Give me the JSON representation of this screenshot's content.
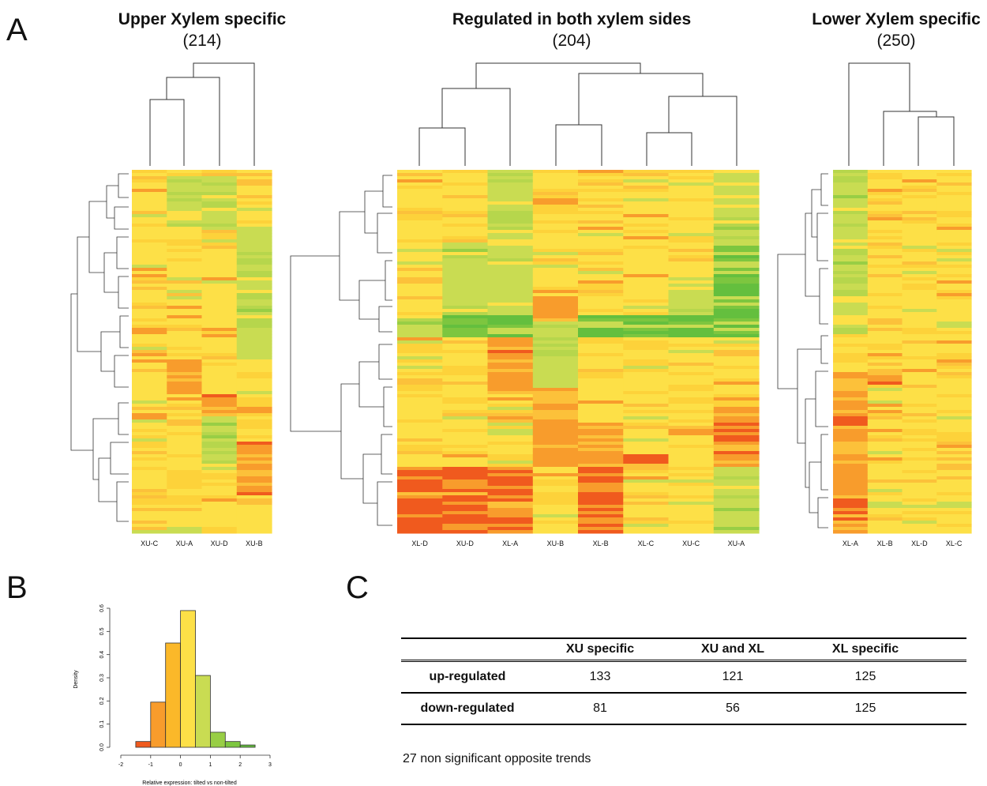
{
  "panels": {
    "a": "A",
    "b": "B",
    "c": "C"
  },
  "heatmaps": [
    {
      "title": "Upper Xylem specific",
      "count": "(214)",
      "columns": [
        "XU-C",
        "XU-A",
        "XU-D",
        "XU-B"
      ]
    },
    {
      "title": "Regulated in  both xylem sides",
      "count": "(204)",
      "columns": [
        "XL-D",
        "XU-D",
        "XL-A",
        "XU-B",
        "XL-B",
        "XL-C",
        "XU-C",
        "XU-A"
      ]
    },
    {
      "title": "Lower Xylem specific",
      "count": "(250)",
      "columns": [
        "XL-A",
        "XL-B",
        "XL-D",
        "XL-C"
      ]
    }
  ],
  "colors": {
    "red": "#f05a1e",
    "orange": "#f89c2c",
    "yellow": "#fde047",
    "lightgreen": "#c9dc52",
    "green": "#64bf3e"
  },
  "chart_data": {
    "type": "bar",
    "title": "",
    "xlabel": "Relative expression: tilted vs non-tilted",
    "ylabel": "Density",
    "x_ticks": [
      "-2",
      "-1",
      "0",
      "1",
      "2",
      "3"
    ],
    "y_ticks": [
      "0.0",
      "0.1",
      "0.2",
      "0.3",
      "0.4",
      "0.5",
      "0.6"
    ],
    "xlim": [
      -2,
      3
    ],
    "ylim": [
      0,
      0.6
    ],
    "bin_edges": [
      -2,
      -1.5,
      -1,
      -0.5,
      0,
      0.5,
      1,
      1.5,
      2,
      2.5,
      3
    ],
    "values": [
      0.0,
      0.025,
      0.195,
      0.45,
      0.59,
      0.31,
      0.065,
      0.025,
      0.01,
      0.0
    ],
    "bar_colors": [
      "#f05a1e",
      "#f05a1e",
      "#f89c2c",
      "#fbb829",
      "#fde047",
      "#c9dc52",
      "#98ce45",
      "#7dc63f",
      "#64bf3e",
      "#64bf3e"
    ]
  },
  "table": {
    "headers": [
      "",
      "XU specific",
      "XU and XL",
      "XL specific"
    ],
    "rows": [
      [
        "up-regulated",
        "133",
        "121",
        "125"
      ],
      [
        "down-regulated",
        "81",
        "56",
        "125"
      ]
    ],
    "footnote": "27 non significant opposite trends"
  }
}
